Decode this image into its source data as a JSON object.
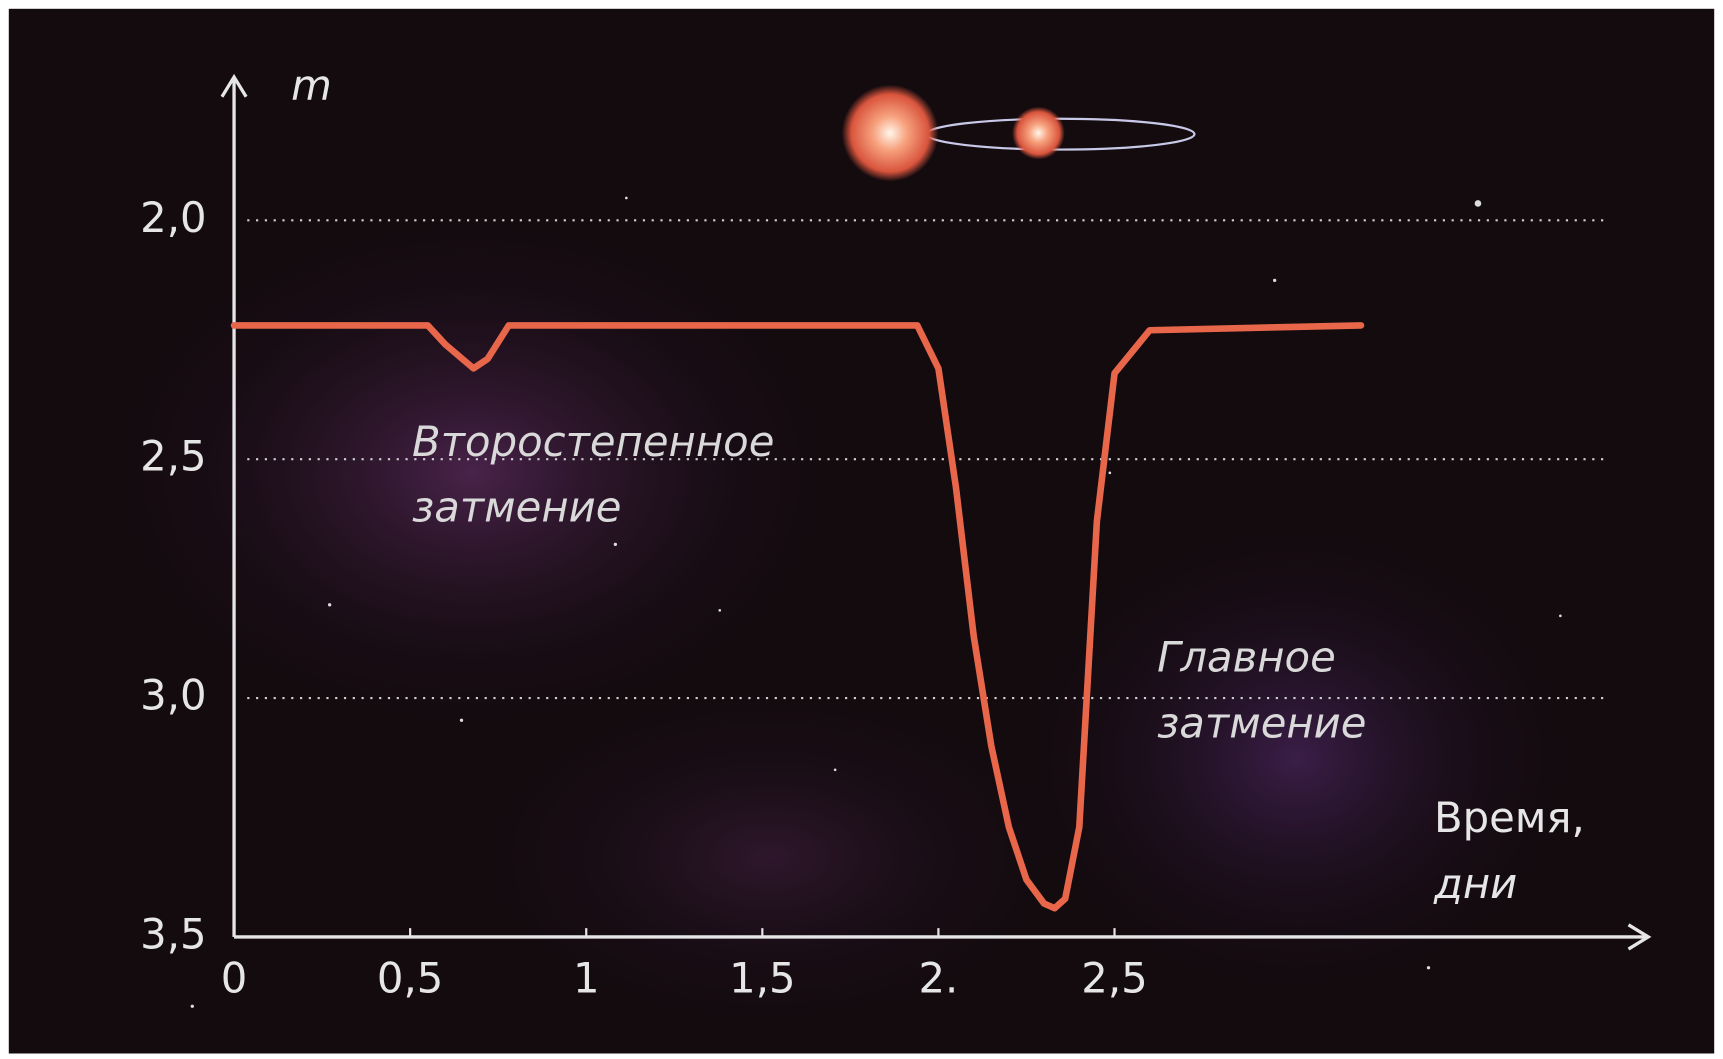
{
  "chart_data": {
    "type": "line",
    "ylabel": "m",
    "xlabel": [
      "Время,",
      "дни"
    ],
    "x": [
      0,
      0.55,
      0.6,
      0.68,
      0.72,
      0.78,
      1.0,
      1.5,
      1.94,
      2.0,
      2.05,
      2.1,
      2.15,
      2.2,
      2.25,
      2.3,
      2.33,
      2.36,
      2.4,
      2.45,
      2.5,
      2.6,
      3.2
    ],
    "series": [
      {
        "color": "#e8674a",
        "values": [
          2.22,
          2.22,
          2.26,
          2.31,
          2.29,
          2.22,
          2.22,
          2.22,
          2.22,
          2.31,
          2.56,
          2.87,
          3.1,
          3.27,
          3.38,
          3.43,
          3.44,
          3.42,
          3.27,
          2.63,
          2.32,
          2.23,
          2.22
        ]
      }
    ],
    "xlim": [
      0,
      4
    ],
    "ylim": [
      3.5,
      1.7
    ],
    "xticks": [
      0,
      {
        "value": 0.5,
        "label": "0,5"
      },
      1,
      {
        "value": 1.5,
        "label": "1,5"
      },
      {
        "value": 2,
        "label": "2."
      },
      {
        "value": 2.5,
        "label": "2,5"
      }
    ],
    "yticks": [
      {
        "value": 2.0,
        "label": "2,0"
      },
      {
        "value": 2.5,
        "label": "2,5"
      },
      {
        "value": 3.0,
        "label": "3,0"
      },
      {
        "value": 3.5,
        "label": "3,5"
      }
    ],
    "grid": true,
    "annotations": [
      {
        "lines": [
          "Второстепенное",
          "затмение"
        ]
      },
      {
        "lines": [
          "Главное",
          "затмение"
        ]
      }
    ]
  }
}
